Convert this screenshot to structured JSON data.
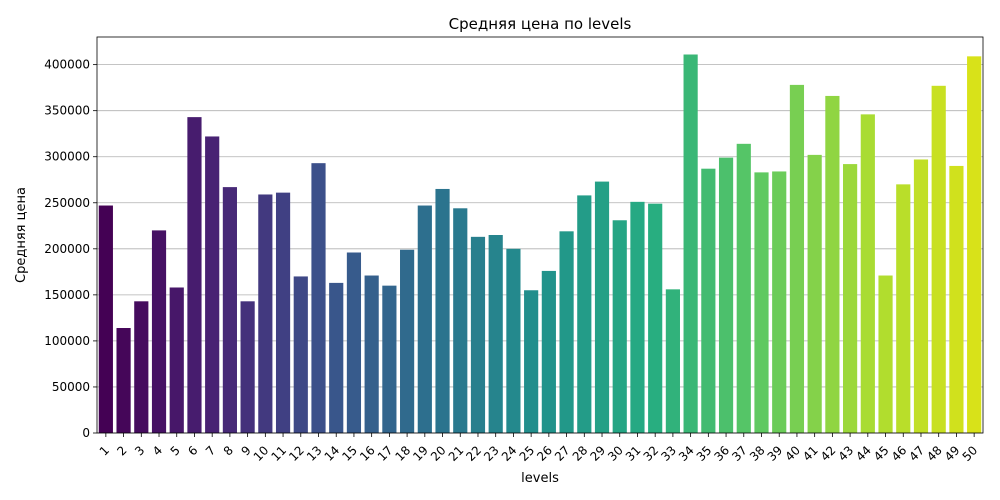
{
  "chart_data": {
    "type": "bar",
    "title": "Средняя цена по levels",
    "xlabel": "levels",
    "ylabel": "Средняя цена",
    "ylim": [
      0,
      430000
    ],
    "yticks": [
      0,
      50000,
      100000,
      150000,
      200000,
      250000,
      300000,
      350000,
      400000
    ],
    "ytick_labels": [
      "0",
      "50000",
      "100000",
      "150000",
      "200000",
      "250000",
      "300000",
      "350000",
      "400000"
    ],
    "grid": "horizontal",
    "colormap": "viridis",
    "color_start": "#440154",
    "color_end": "#d8e219",
    "categories": [
      "1",
      "2",
      "3",
      "4",
      "5",
      "6",
      "7",
      "8",
      "9",
      "10",
      "11",
      "12",
      "13",
      "14",
      "15",
      "16",
      "17",
      "18",
      "19",
      "20",
      "21",
      "22",
      "23",
      "24",
      "25",
      "26",
      "27",
      "28",
      "29",
      "30",
      "31",
      "32",
      "33",
      "34",
      "35",
      "36",
      "37",
      "38",
      "39",
      "40",
      "41",
      "42",
      "43",
      "44",
      "45",
      "46",
      "47",
      "48",
      "49",
      "50"
    ],
    "values": [
      247000,
      114000,
      143000,
      220000,
      158000,
      343000,
      322000,
      267000,
      143000,
      259000,
      261000,
      170000,
      293000,
      163000,
      196000,
      171000,
      160000,
      199000,
      247000,
      265000,
      244000,
      213000,
      215000,
      200000,
      155000,
      176000,
      219000,
      258000,
      273000,
      231000,
      251000,
      249000,
      156000,
      411000,
      287000,
      299000,
      314000,
      283000,
      284000,
      378000,
      302000,
      366000,
      292000,
      346000,
      171000,
      270000,
      297000,
      377000,
      290000,
      409000
    ]
  }
}
